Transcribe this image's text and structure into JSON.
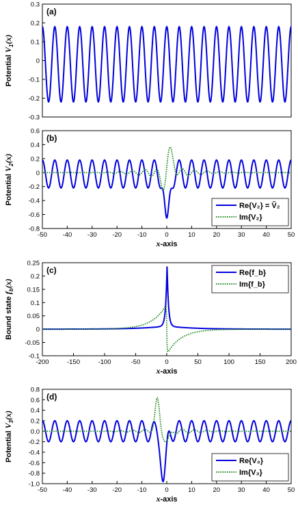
{
  "chart_data": [
    {
      "type": "line",
      "panel_label": "(a)",
      "ylabel_text": "Potential ",
      "ylabel_math": "V",
      "ylabel_sub": "1",
      "ylabel_tail": "(x)",
      "xlabel_math": "",
      "xlabel_text": "",
      "xlim": [
        -50,
        50
      ],
      "ylim": [
        -0.3,
        0.3
      ],
      "xticks": [],
      "yticks": [
        -0.3,
        -0.2,
        -0.1,
        0,
        0.1,
        0.2,
        0.3
      ],
      "ytick_labels": [
        "-0.3",
        "-0.2",
        "-0.1",
        "0",
        "0.1",
        "0.2",
        "0.3"
      ],
      "legend": null,
      "series": [
        {
          "style": "solid",
          "color": "#0000dd",
          "description": "periodic potential, max ≈ 0.18, min ≈ -0.22, period ≈ 5 (≈ 20 cycles over [-50,50])",
          "amplitude_max": 0.18,
          "amplitude_min": -0.22,
          "period": 5.0
        }
      ]
    },
    {
      "type": "line",
      "panel_label": "(b)",
      "ylabel_text": "Potential ",
      "ylabel_math": "V",
      "ylabel_sub": "2",
      "ylabel_tail": "(x)",
      "xlabel_math": "x",
      "xlabel_text": "-axis",
      "xlim": [
        -50,
        50
      ],
      "ylim": [
        -0.8,
        0.6
      ],
      "xticks": [
        -50,
        -40,
        -30,
        -20,
        -10,
        0,
        10,
        20,
        30,
        40,
        50
      ],
      "xtick_labels": [
        "-50",
        "-40",
        "-30",
        "-20",
        "-10",
        "0",
        "10",
        "20",
        "30",
        "40",
        "50"
      ],
      "yticks": [
        -0.8,
        -0.6,
        -0.4,
        -0.2,
        0,
        0.2,
        0.4,
        0.6
      ],
      "ytick_labels": [
        "-0.8",
        "-0.6",
        "-0.4",
        "-0.2",
        "0",
        "0.2",
        "0.4",
        "0.6"
      ],
      "legend": {
        "placement": "lower-right",
        "entries": [
          {
            "style": "solid",
            "color": "#0000dd",
            "label": "Re{V₂} = Ṽ₂"
          },
          {
            "style": "dotted",
            "color": "#228b22",
            "label": "Im{V₂}"
          }
        ]
      },
      "series": [
        {
          "name": "Re{V2}",
          "style": "solid",
          "color": "#0000dd",
          "amplitude_max": 0.18,
          "amplitude_min": -0.22,
          "period": 5.0,
          "dip_at_0": -0.65
        },
        {
          "name": "Im{V2}",
          "style": "dotted",
          "color": "#228b22",
          "peak_near_0": 0.4,
          "trough_near_0": -0.33
        }
      ]
    },
    {
      "type": "line",
      "panel_label": "(c)",
      "ylabel_text": "Bound state ",
      "ylabel_math": "f",
      "ylabel_sub": "b",
      "ylabel_tail": "(x)",
      "xlabel_math": "x",
      "xlabel_text": "-axis",
      "xlim": [
        -200,
        200
      ],
      "ylim": [
        -0.1,
        0.25
      ],
      "xticks": [
        -200,
        -150,
        -100,
        -50,
        0,
        50,
        100,
        150,
        200
      ],
      "xtick_labels": [
        "-200",
        "-150",
        "-100",
        "-50",
        "0",
        "50",
        "100",
        "150",
        "200"
      ],
      "yticks": [
        -0.1,
        -0.05,
        0,
        0.05,
        0.1,
        0.15,
        0.2,
        0.25
      ],
      "ytick_labels": [
        "-0.1",
        "-0.05",
        "0",
        "0.05",
        "0.1",
        "0.15",
        "0.2",
        "0.25"
      ],
      "legend": {
        "placement": "top-right",
        "entries": [
          {
            "style": "solid",
            "color": "#0000dd",
            "label": "Re{f_b}"
          },
          {
            "style": "dotted",
            "color": "#228b22",
            "label": "Im{f_b}"
          }
        ]
      },
      "series": [
        {
          "name": "Re{f_b}",
          "style": "solid",
          "color": "#0000dd",
          "peak_at_0": 0.23
        },
        {
          "name": "Im{f_b}",
          "style": "dotted",
          "color": "#228b22",
          "peak_left": 0.095,
          "trough_right": -0.095
        }
      ]
    },
    {
      "type": "line",
      "panel_label": "(d)",
      "ylabel_text": "Potential ",
      "ylabel_math": "V",
      "ylabel_sub": "3",
      "ylabel_tail": "(x)",
      "xlabel_math": "x",
      "xlabel_text": "-axis",
      "xlim": [
        -50,
        50
      ],
      "ylim": [
        -1.0,
        0.8
      ],
      "xticks": [
        -50,
        -40,
        -30,
        -20,
        -10,
        0,
        10,
        20,
        30,
        40,
        50
      ],
      "xtick_labels": [
        "-50",
        "-40",
        "-30",
        "-20",
        "-10",
        "0",
        "10",
        "20",
        "30",
        "40",
        "50"
      ],
      "yticks": [
        -1.0,
        -0.8,
        -0.6,
        -0.4,
        -0.2,
        0,
        0.2,
        0.4,
        0.6,
        0.8
      ],
      "ytick_labels": [
        "-1.0",
        "-0.8",
        "-0.6",
        "-0.4",
        "-0.2",
        "0.0",
        "0.2",
        "0.4",
        "0.6",
        "0.8"
      ],
      "legend": {
        "placement": "lower-right",
        "entries": [
          {
            "style": "solid",
            "color": "#0000dd",
            "label": "Re{V₃}"
          },
          {
            "style": "dotted",
            "color": "#228b22",
            "label": "Im{V₃}"
          }
        ]
      },
      "series": [
        {
          "name": "Re{V3}",
          "style": "solid",
          "color": "#0000dd",
          "amplitude_max": 0.2,
          "amplitude_min": -0.2,
          "period": 5.0,
          "dip_near_neg2": -0.96
        },
        {
          "name": "Im{V3}",
          "style": "dotted",
          "color": "#228b22",
          "peak_near_neg4": 0.64,
          "trough_near_0": -0.2
        }
      ]
    }
  ]
}
